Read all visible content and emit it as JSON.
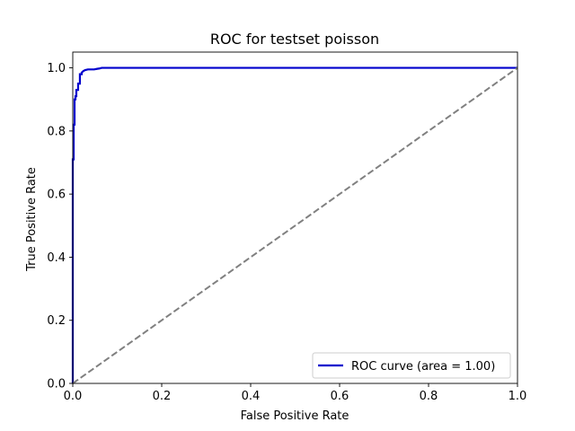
{
  "chart_data": {
    "type": "line",
    "title": "ROC for testset poisson",
    "xlabel": "False Positive Rate",
    "ylabel": "True Positive Rate",
    "xlim": [
      0.0,
      1.0
    ],
    "ylim": [
      0.0,
      1.05
    ],
    "xticks": [
      0.0,
      0.2,
      0.4,
      0.6,
      0.8,
      1.0
    ],
    "xtick_labels": [
      "0.0",
      "0.2",
      "0.4",
      "0.6",
      "0.8",
      "1.0"
    ],
    "yticks": [
      0.0,
      0.2,
      0.4,
      0.6,
      0.8,
      1.0
    ],
    "ytick_labels": [
      "0.0",
      "0.2",
      "0.4",
      "0.6",
      "0.8",
      "1.0"
    ],
    "grid": false,
    "legend_position": "lower-right",
    "series": [
      {
        "name": "ROC curve (area = 1.00)",
        "color": "#0000cd",
        "style": "solid",
        "x": [
          0.0,
          0.0,
          0.002,
          0.002,
          0.004,
          0.004,
          0.006,
          0.006,
          0.008,
          0.008,
          0.012,
          0.012,
          0.016,
          0.016,
          0.02,
          0.02,
          0.024,
          0.028,
          0.034,
          0.04,
          0.048,
          0.055,
          0.06,
          0.065,
          0.1,
          0.5,
          1.0
        ],
        "y": [
          0.0,
          0.71,
          0.71,
          0.82,
          0.82,
          0.9,
          0.9,
          0.91,
          0.91,
          0.93,
          0.93,
          0.95,
          0.95,
          0.98,
          0.98,
          0.985,
          0.99,
          0.993,
          0.995,
          0.995,
          0.995,
          0.997,
          0.998,
          1.0,
          1.0,
          1.0,
          1.0
        ]
      },
      {
        "name": "",
        "color": "#808080",
        "style": "dashed",
        "x": [
          0.0,
          1.0
        ],
        "y": [
          0.0,
          1.0
        ]
      }
    ],
    "legend": {
      "label": "ROC curve (area = 1.00)",
      "color": "#0000cd"
    }
  }
}
